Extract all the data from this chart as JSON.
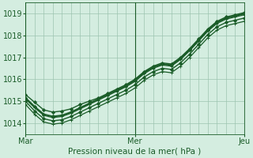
{
  "xlabel": "Pression niveau de la mer( hPa )",
  "bg_color": "#d4ede0",
  "grid_color": "#9dc4b0",
  "line_color": "#1a5c28",
  "text_color": "#1a5c28",
  "ylim": [
    1013.5,
    1019.5
  ],
  "xlim": [
    0,
    96
  ],
  "xtick_positions": [
    0,
    48,
    96
  ],
  "xtick_labels": [
    "Mar",
    "Mer",
    "Jeu"
  ],
  "ytick_positions": [
    1014,
    1015,
    1016,
    1017,
    1018,
    1019
  ],
  "vline_positions": [
    0,
    48,
    96
  ],
  "series": [
    {
      "x": [
        0,
        4,
        8,
        12,
        16,
        20,
        24,
        28,
        32,
        36,
        40,
        44,
        48,
        52,
        56,
        60,
        64,
        68,
        72,
        76,
        80,
        84,
        88,
        92,
        96
      ],
      "y": [
        1015.3,
        1014.95,
        1014.6,
        1014.5,
        1014.55,
        1014.65,
        1014.85,
        1015.0,
        1015.15,
        1015.35,
        1015.55,
        1015.75,
        1016.0,
        1016.35,
        1016.6,
        1016.75,
        1016.7,
        1017.0,
        1017.4,
        1017.85,
        1018.3,
        1018.65,
        1018.85,
        1018.95,
        1019.05
      ],
      "marker": "D",
      "linewidth": 1.0,
      "markersize": 2.0
    },
    {
      "x": [
        0,
        4,
        8,
        12,
        16,
        20,
        24,
        28,
        32,
        36,
        40,
        44,
        48,
        52,
        56,
        60,
        64,
        68,
        72,
        76,
        80,
        84,
        88,
        92,
        96
      ],
      "y": [
        1015.1,
        1014.7,
        1014.35,
        1014.25,
        1014.3,
        1014.45,
        1014.65,
        1014.85,
        1015.05,
        1015.25,
        1015.45,
        1015.65,
        1015.9,
        1016.25,
        1016.5,
        1016.65,
        1016.6,
        1016.9,
        1017.3,
        1017.75,
        1018.2,
        1018.55,
        1018.75,
        1018.85,
        1018.95
      ],
      "marker": "+",
      "linewidth": 0.9,
      "markersize": 3.5
    },
    {
      "x": [
        0,
        4,
        8,
        12,
        16,
        20,
        24,
        28,
        32,
        36,
        40,
        44,
        48,
        52,
        56,
        60,
        64,
        68,
        72,
        76,
        80,
        84,
        88,
        92,
        96
      ],
      "y": [
        1015.0,
        1014.55,
        1014.2,
        1014.1,
        1014.15,
        1014.3,
        1014.5,
        1014.7,
        1014.9,
        1015.1,
        1015.3,
        1015.5,
        1015.75,
        1016.1,
        1016.35,
        1016.5,
        1016.45,
        1016.75,
        1017.15,
        1017.6,
        1018.05,
        1018.4,
        1018.6,
        1018.7,
        1018.8
      ],
      "marker": "D",
      "linewidth": 1.0,
      "markersize": 2.0
    },
    {
      "x": [
        0,
        4,
        8,
        12,
        16,
        20,
        24,
        28,
        32,
        36,
        40,
        44,
        48,
        52,
        56,
        60,
        64,
        68,
        72,
        76,
        80,
        84,
        88,
        92,
        96
      ],
      "y": [
        1014.85,
        1014.4,
        1014.05,
        1013.95,
        1014.0,
        1014.15,
        1014.35,
        1014.55,
        1014.75,
        1014.95,
        1015.15,
        1015.35,
        1015.6,
        1015.95,
        1016.2,
        1016.35,
        1016.3,
        1016.6,
        1017.0,
        1017.45,
        1017.9,
        1018.25,
        1018.45,
        1018.55,
        1018.65
      ],
      "marker": "+",
      "linewidth": 0.9,
      "markersize": 3.5
    },
    {
      "x": [
        0,
        4,
        8,
        12,
        16,
        20,
        24,
        28,
        32,
        36,
        40,
        44,
        48,
        52,
        56,
        60,
        64,
        68,
        72,
        76,
        80,
        84,
        88,
        92,
        96
      ],
      "y": [
        1015.15,
        1014.75,
        1014.4,
        1014.3,
        1014.35,
        1014.5,
        1014.7,
        1014.9,
        1015.1,
        1015.3,
        1015.5,
        1015.7,
        1015.95,
        1016.3,
        1016.55,
        1016.7,
        1016.65,
        1016.95,
        1017.35,
        1017.8,
        1018.25,
        1018.6,
        1018.8,
        1018.9,
        1019.0
      ],
      "marker": "D",
      "linewidth": 1.4,
      "markersize": 2.0
    }
  ]
}
